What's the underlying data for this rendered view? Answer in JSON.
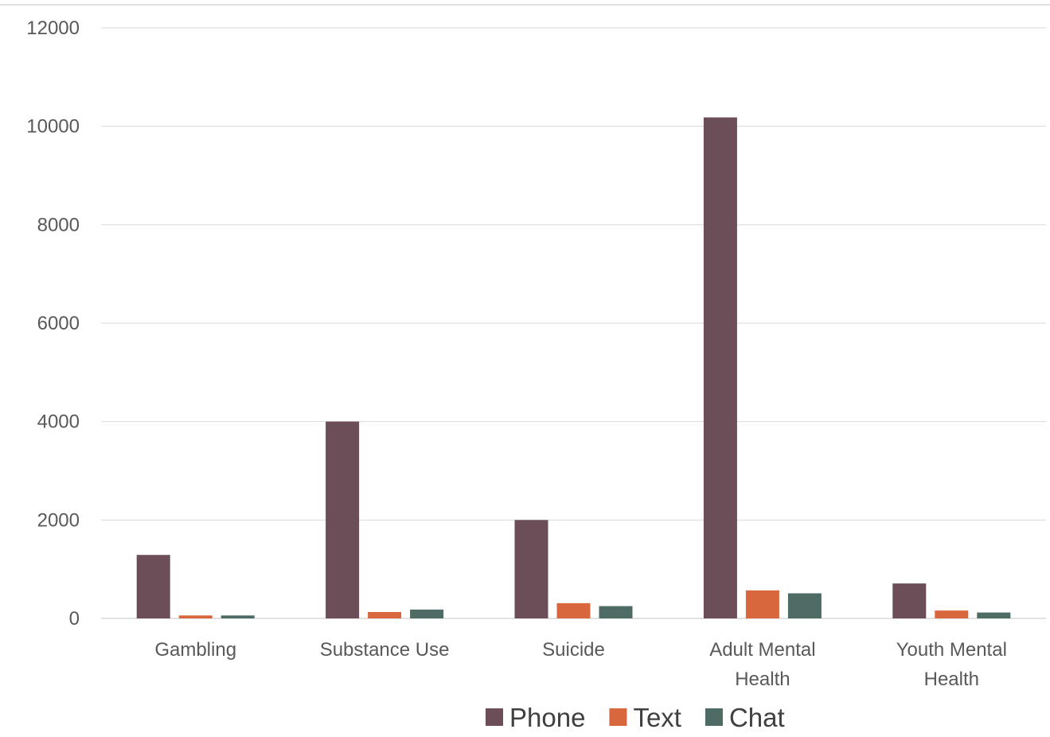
{
  "chart_data": {
    "type": "bar",
    "categories": [
      [
        "Gambling"
      ],
      [
        "Substance Use"
      ],
      [
        "Suicide"
      ],
      [
        "Adult Mental",
        "Health"
      ],
      [
        "Youth Mental",
        "Health"
      ]
    ],
    "series": [
      {
        "name": "Phone",
        "color": "#6b4e57",
        "values": [
          1290,
          4000,
          2000,
          10180,
          710
        ]
      },
      {
        "name": "Text",
        "color": "#d9673e",
        "values": [
          60,
          130,
          310,
          570,
          160
        ]
      },
      {
        "name": "Chat",
        "color": "#4f6b66",
        "values": [
          60,
          180,
          250,
          510,
          120
        ]
      }
    ],
    "y_ticks": [
      "0",
      "2000",
      "4000",
      "6000",
      "8000",
      "10000",
      "12000"
    ],
    "ylim": [
      0,
      12000
    ],
    "grid": true,
    "legend_position": "bottom"
  }
}
